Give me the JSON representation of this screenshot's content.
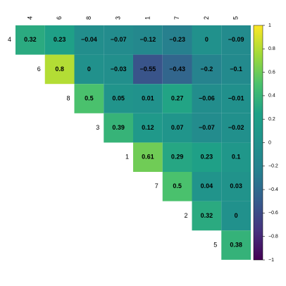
{
  "chart_data": {
    "type": "heatmap",
    "title": "",
    "variables": [
      "4",
      "6",
      "8",
      "3",
      "1",
      "7",
      "2",
      "5"
    ],
    "matrix": [
      [
        0.32,
        0.23,
        -0.04,
        -0.07,
        -0.12,
        -0.23,
        0,
        -0.09
      ],
      [
        null,
        0.8,
        0,
        -0.03,
        -0.55,
        -0.43,
        -0.2,
        -0.1
      ],
      [
        null,
        null,
        0.5,
        0.05,
        0.01,
        0.27,
        -0.06,
        -0.01
      ],
      [
        null,
        null,
        null,
        0.39,
        0.12,
        0.07,
        -0.07,
        -0.02
      ],
      [
        null,
        null,
        null,
        null,
        0.61,
        0.29,
        0.23,
        0.1
      ],
      [
        null,
        null,
        null,
        null,
        null,
        0.5,
        0.04,
        0.03
      ],
      [
        null,
        null,
        null,
        null,
        null,
        null,
        0.32,
        0
      ],
      [
        null,
        null,
        null,
        null,
        null,
        null,
        null,
        0.38
      ]
    ],
    "color_scale": {
      "name": "viridis",
      "range": [
        -1,
        1
      ],
      "ticks": [
        "1",
        "0.8",
        "0.6",
        "0.4",
        "0.2",
        "0",
        "−0.2",
        "−0.4",
        "−0.6",
        "−0.8",
        "−1"
      ]
    },
    "layout": "upper-triangle",
    "legend": "right"
  }
}
